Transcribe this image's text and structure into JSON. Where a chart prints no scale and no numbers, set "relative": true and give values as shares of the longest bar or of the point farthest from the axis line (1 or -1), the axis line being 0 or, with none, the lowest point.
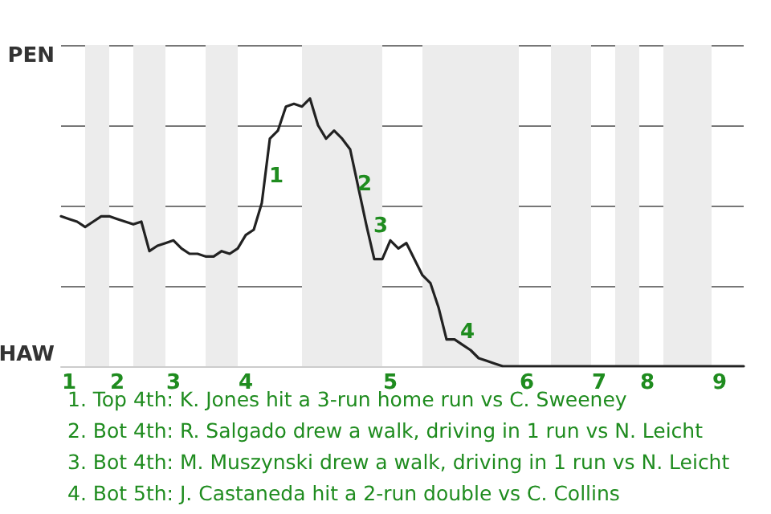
{
  "chart_data": {
    "type": "line",
    "relative": true,
    "categories": [
      null,
      "1",
      null,
      null,
      null,
      null,
      null,
      "2",
      null,
      null,
      null,
      null,
      null,
      null,
      "3",
      null,
      null,
      null,
      null,
      null,
      null,
      null,
      null,
      "4",
      null,
      null,
      null,
      null,
      null,
      null,
      null,
      null,
      null,
      null,
      null,
      null,
      null,
      null,
      null,
      null,
      null,
      "5",
      null,
      null,
      null,
      null,
      null,
      null,
      null,
      null,
      null,
      null,
      null,
      null,
      null,
      null,
      null,
      null,
      "6",
      null,
      null,
      null,
      null,
      null,
      null,
      null,
      null,
      "7",
      null,
      null,
      null,
      null,
      null,
      "8",
      null,
      null,
      null,
      null,
      null,
      null,
      null,
      null,
      "9",
      null,
      null,
      null
    ],
    "series": [
      {
        "color": "#222222",
        "values": [
          0.56,
          0.55,
          0.54,
          0.52,
          0.54,
          0.56,
          0.56,
          0.55,
          0.54,
          0.53,
          0.54,
          0.43,
          0.45,
          0.46,
          0.47,
          0.44,
          0.42,
          0.42,
          0.41,
          0.41,
          0.43,
          0.42,
          0.44,
          0.49,
          0.51,
          0.61,
          0.85,
          0.88,
          0.97,
          0.98,
          0.97,
          1,
          0.9,
          0.85,
          0.88,
          0.85,
          0.81,
          0.67,
          0.53,
          0.4,
          0.4,
          0.47,
          0.44,
          0.46,
          0.4,
          0.34,
          0.31,
          0.22,
          0.1,
          0.1,
          0.08,
          0.06,
          0.03,
          0.02,
          0.01,
          0,
          0,
          0,
          0,
          0,
          0,
          0,
          0,
          0,
          0,
          0,
          0,
          0,
          0,
          0,
          0,
          0,
          0,
          0,
          0,
          0,
          0,
          0,
          0,
          0,
          0,
          0,
          0,
          0,
          0,
          0
        ]
      }
    ],
    "grid": "y",
    "marker": "none",
    "line_style": "solid",
    "annotations": [
      "PEN",
      "HAW",
      "1",
      "2",
      "3",
      "4",
      "1. Top 4th: K. Jones hit a 3-run home run vs C. Sweeney",
      "2. Bot 4th: R. Salgado drew a walk, driving in 1 run vs N. Leicht",
      "3. Bot 4th: M. Muszynski drew a walk, driving in 1 run vs N. Leicht",
      "4. Bot 5th: J. Castaneda hit a 2-run double vs C. Collins"
    ]
  }
}
